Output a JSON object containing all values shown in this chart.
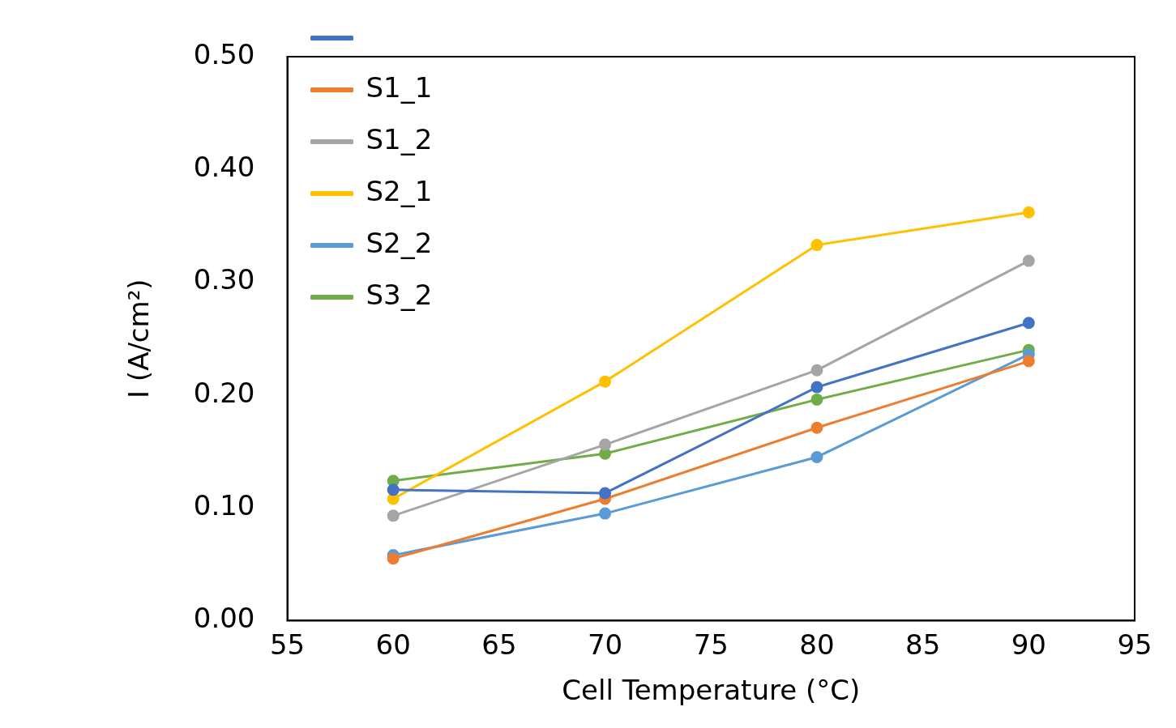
{
  "chart_data": {
    "type": "line",
    "xlabel": "Cell Temperature (°C)",
    "ylabel": "I (A/cm²)",
    "x": [
      60,
      70,
      80,
      90
    ],
    "series": [
      {
        "color": "#4472c4",
        "values": [
          0.116,
          0.113,
          0.207,
          0.264
        ]
      },
      {
        "name": "S1_1",
        "color": "#ed7d31",
        "values": [
          0.055,
          0.108,
          0.171,
          0.23
        ]
      },
      {
        "name": "S1_2",
        "color": "#a5a5a5",
        "values": [
          0.093,
          0.156,
          0.222,
          0.319
        ]
      },
      {
        "name": "S2_1",
        "color": "#ffc000",
        "values": [
          0.108,
          0.212,
          0.333,
          0.362
        ]
      },
      {
        "name": "S2_2",
        "color": "#5b9bd5",
        "values": [
          0.058,
          0.095,
          0.145,
          0.236
        ]
      },
      {
        "name": "S3_2",
        "color": "#70ad47",
        "values": [
          0.124,
          0.148,
          0.196,
          0.24
        ]
      }
    ],
    "xlim": [
      55,
      95
    ],
    "xticks": [
      55,
      60,
      65,
      70,
      75,
      80,
      85,
      90,
      95
    ],
    "ylim": [
      0,
      0.5
    ],
    "yticks": [
      {
        "value": 0,
        "label": "0.00"
      },
      {
        "value": 0.1,
        "label": "0.10"
      },
      {
        "value": 0.2,
        "label": "0.20"
      },
      {
        "value": 0.3,
        "label": "0.30"
      },
      {
        "value": 0.4,
        "label": "0.40"
      },
      {
        "value": 0.5,
        "label": "0.50"
      }
    ],
    "grid": false,
    "legend": "top left",
    "marker": "circle",
    "line_style": "solid"
  }
}
